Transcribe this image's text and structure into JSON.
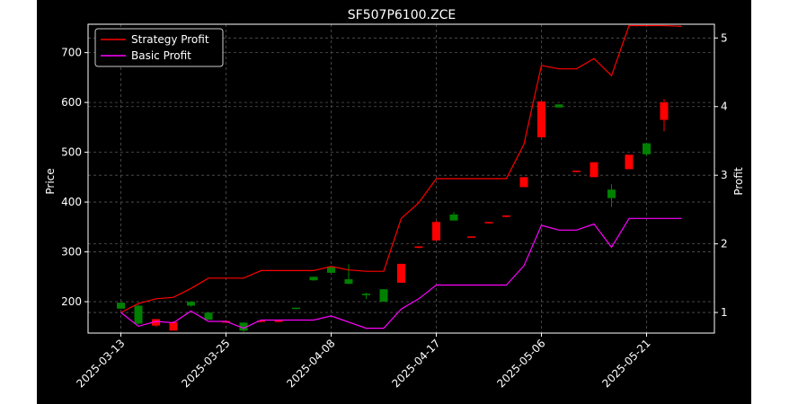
{
  "chart_data": {
    "type": "candlestick",
    "title": "SF507P6100.ZCE",
    "ylabel": "Price",
    "y2label": "Profit",
    "xlabel": "",
    "ylim": [
      137,
      757
    ],
    "y2lim": [
      0.7,
      5.2
    ],
    "yticks": [
      200,
      300,
      400,
      500,
      600,
      700
    ],
    "y2ticks": [
      1,
      2,
      3,
      4,
      5
    ],
    "xtick_labels": [
      "2025-03-13",
      "2025-03-25",
      "2025-04-08",
      "2025-04-17",
      "2025-05-06",
      "2025-05-21"
    ],
    "xtick_index": [
      0,
      6,
      12,
      18,
      24,
      30
    ],
    "x_count": 33,
    "grid": true,
    "legend_position": "top-left",
    "colors": {
      "up": "#ff0000",
      "down": "#008000",
      "strategy": "#ff0000",
      "basic": "#ff00ff",
      "background": "#000000",
      "grid": "#555555",
      "axis": "#ffffff"
    },
    "candles": [
      {
        "i": 0,
        "open": 198,
        "close": 186,
        "high": 198,
        "low": 186
      },
      {
        "i": 1,
        "open": 192,
        "close": 156,
        "high": 194,
        "low": 154
      },
      {
        "i": 2,
        "open": 152,
        "close": 165,
        "high": 165,
        "low": 150
      },
      {
        "i": 3,
        "open": 142,
        "close": 159,
        "high": 161,
        "low": 142
      },
      {
        "i": 4,
        "open": 200,
        "close": 192,
        "high": 201,
        "low": 190
      },
      {
        "i": 5,
        "open": 178,
        "close": 164,
        "high": 178,
        "low": 164
      },
      {
        "i": 6,
        "open": 158,
        "close": 161,
        "high": 163,
        "low": 157
      },
      {
        "i": 7,
        "open": 158,
        "close": 142,
        "high": 158,
        "low": 139
      },
      {
        "i": 8,
        "open": 160,
        "close": 162,
        "high": 163,
        "low": 159
      },
      {
        "i": 9,
        "open": 160,
        "close": 162,
        "high": 163,
        "low": 159
      },
      {
        "i": 10,
        "open": 188,
        "close": 186,
        "high": 188,
        "low": 185
      },
      {
        "i": 11,
        "open": 250,
        "close": 243,
        "high": 250,
        "low": 242
      },
      {
        "i": 12,
        "open": 270,
        "close": 258,
        "high": 270,
        "low": 258
      },
      {
        "i": 13,
        "open": 245,
        "close": 236,
        "high": 275,
        "low": 235
      },
      {
        "i": 14,
        "open": 216,
        "close": 213,
        "high": 218,
        "low": 205
      },
      {
        "i": 15,
        "open": 225,
        "close": 200,
        "high": 225,
        "low": 200
      },
      {
        "i": 16,
        "open": 238,
        "close": 276,
        "high": 276,
        "low": 238
      },
      {
        "i": 17,
        "open": 309,
        "close": 311,
        "high": 311,
        "low": 307
      },
      {
        "i": 18,
        "open": 323,
        "close": 360,
        "high": 362,
        "low": 323
      },
      {
        "i": 19,
        "open": 375,
        "close": 363,
        "high": 380,
        "low": 363
      },
      {
        "i": 20,
        "open": 329,
        "close": 331,
        "high": 331,
        "low": 328
      },
      {
        "i": 21,
        "open": 358,
        "close": 360,
        "high": 360,
        "low": 357
      },
      {
        "i": 22,
        "open": 371,
        "close": 373,
        "high": 373,
        "low": 370
      },
      {
        "i": 23,
        "open": 430,
        "close": 450,
        "high": 450,
        "low": 430
      },
      {
        "i": 24,
        "open": 530,
        "close": 602,
        "high": 602,
        "low": 530
      },
      {
        "i": 25,
        "open": 596,
        "close": 590,
        "high": 596,
        "low": 590
      },
      {
        "i": 26,
        "open": 461,
        "close": 463,
        "high": 463,
        "low": 460
      },
      {
        "i": 27,
        "open": 450,
        "close": 480,
        "high": 480,
        "low": 450
      },
      {
        "i": 28,
        "open": 425,
        "close": 408,
        "high": 436,
        "low": 390
      },
      {
        "i": 29,
        "open": 466,
        "close": 495,
        "high": 495,
        "low": 466
      },
      {
        "i": 30,
        "open": 518,
        "close": 496,
        "high": 518,
        "low": 492
      },
      {
        "i": 31,
        "open": 565,
        "close": 600,
        "high": 607,
        "low": 542
      }
    ],
    "series": [
      {
        "name": "Strategy Profit",
        "x": [
          0,
          1,
          2,
          3,
          4,
          5,
          6,
          7,
          8,
          9,
          10,
          11,
          12,
          13,
          14,
          15,
          16,
          17,
          18,
          19,
          20,
          21,
          22,
          23,
          24,
          25,
          26,
          27,
          28,
          29,
          30,
          31,
          32
        ],
        "values": [
          1.0,
          1.13,
          1.2,
          1.22,
          1.35,
          1.5,
          1.5,
          1.5,
          1.61,
          1.61,
          1.61,
          1.61,
          1.67,
          1.62,
          1.6,
          1.6,
          2.37,
          2.6,
          2.95,
          2.95,
          2.95,
          2.95,
          2.95,
          3.45,
          4.6,
          4.55,
          4.55,
          4.7,
          4.45,
          5.18,
          5.18,
          5.18,
          5.17
        ]
      },
      {
        "name": "Basic Profit",
        "x": [
          0,
          1,
          2,
          3,
          4,
          5,
          6,
          7,
          8,
          9,
          10,
          11,
          12,
          13,
          14,
          15,
          16,
          17,
          18,
          19,
          20,
          21,
          22,
          23,
          24,
          25,
          26,
          27,
          28,
          29,
          30,
          31,
          32
        ],
        "values": [
          1.0,
          0.8,
          0.87,
          0.85,
          1.02,
          0.87,
          0.87,
          0.77,
          0.89,
          0.89,
          0.89,
          0.89,
          0.95,
          0.86,
          0.77,
          0.77,
          1.05,
          1.2,
          1.4,
          1.4,
          1.4,
          1.4,
          1.4,
          1.68,
          2.27,
          2.2,
          2.2,
          2.29,
          1.95,
          2.37,
          2.37,
          2.37,
          2.37
        ]
      }
    ]
  }
}
